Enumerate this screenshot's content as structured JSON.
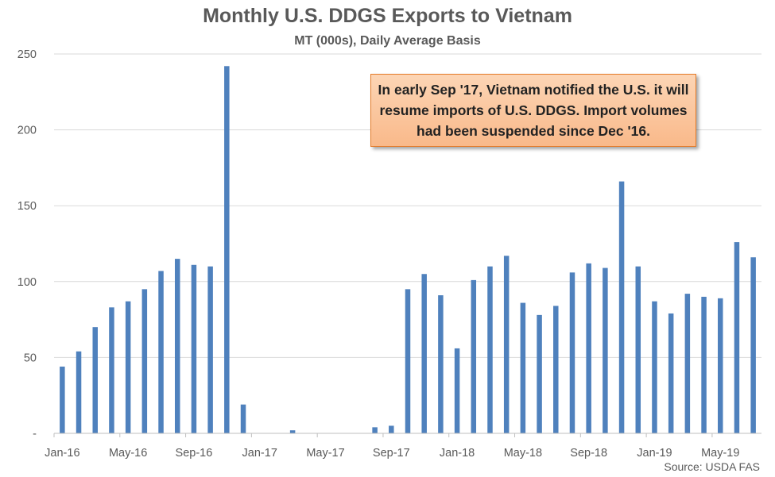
{
  "chart_data": {
    "type": "bar",
    "title": "Monthly U.S. DDGS Exports to Vietnam",
    "subtitle": "MT (000s), Daily Average Basis",
    "source": "Source: USDA FAS",
    "annotation": "In early Sep '17, Vietnam notified the U.S. it will resume imports of U.S. DDGS. Import volumes had been suspended since Dec '16.",
    "ylim": [
      0,
      250
    ],
    "yticks": [
      0,
      50,
      100,
      150,
      200,
      250
    ],
    "ytick_labels": [
      "-",
      "50",
      "100",
      "150",
      "200",
      "250"
    ],
    "xtick_labels": [
      "Jan-16",
      "May-16",
      "Sep-16",
      "Jan-17",
      "May-17",
      "Sep-17",
      "Jan-18",
      "May-18",
      "Sep-18",
      "Jan-19",
      "May-19"
    ],
    "xtick_every": 4,
    "categories": [
      "Jan-16",
      "Feb-16",
      "Mar-16",
      "Apr-16",
      "May-16",
      "Jun-16",
      "Jul-16",
      "Aug-16",
      "Sep-16",
      "Oct-16",
      "Nov-16",
      "Dec-16",
      "Jan-17",
      "Feb-17",
      "Mar-17",
      "Apr-17",
      "May-17",
      "Jun-17",
      "Jul-17",
      "Aug-17",
      "Sep-17",
      "Oct-17",
      "Nov-17",
      "Dec-17",
      "Jan-18",
      "Feb-18",
      "Mar-18",
      "Apr-18",
      "May-18",
      "Jun-18",
      "Jul-18",
      "Aug-18",
      "Sep-18",
      "Oct-18",
      "Nov-18",
      "Dec-18",
      "Jan-19",
      "Feb-19",
      "Mar-19",
      "Apr-19",
      "May-19",
      "Jun-19",
      "Jul-19"
    ],
    "values": [
      44,
      54,
      70,
      83,
      87,
      95,
      107,
      115,
      111,
      110,
      242,
      19,
      0,
      0,
      2,
      0,
      0,
      0,
      0,
      4,
      5,
      95,
      105,
      91,
      56,
      101,
      110,
      117,
      86,
      78,
      84,
      106,
      112,
      109,
      166,
      110,
      87,
      79,
      92,
      90,
      89,
      126,
      116
    ],
    "bar_color": "#4f81bd",
    "grid": true
  }
}
